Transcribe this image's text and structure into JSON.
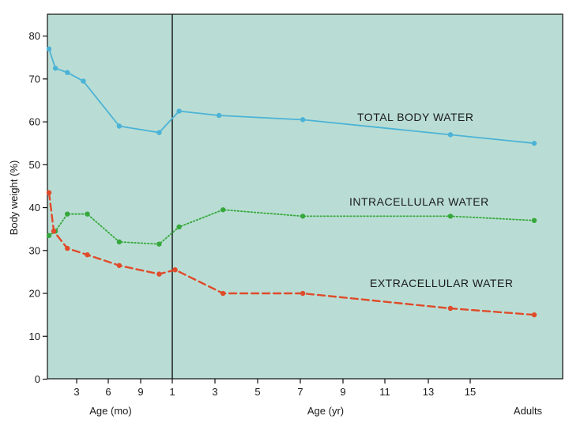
{
  "chart_data": {
    "type": "line",
    "title": "",
    "ylabel": "Body weight (%)",
    "ylim": [
      0,
      85
    ],
    "yticks": [
      0,
      10,
      20,
      30,
      40,
      50,
      60,
      70,
      80
    ],
    "x_sections": [
      {
        "label": "Age (mo)",
        "ticks": [
          "3",
          "6",
          "9",
          "1"
        ]
      },
      {
        "label": "Age (yr)",
        "ticks": [
          "3",
          "5",
          "7",
          "9",
          "11",
          "13",
          "15"
        ]
      },
      {
        "label": "Adults",
        "ticks": []
      }
    ],
    "series": [
      {
        "name": "TOTAL BODY WATER",
        "color": "#4bb3d6",
        "style": "solid",
        "x": [
          0.2,
          1,
          2.5,
          4.5,
          9,
          14,
          16.5,
          21.5,
          32,
          50.5,
          61
        ],
        "values": [
          77,
          72.5,
          71.5,
          69.5,
          59,
          57.5,
          62.5,
          61.5,
          60.5,
          57,
          55
        ]
      },
      {
        "name": "INTRACELLULAR WATER",
        "color": "#37a83c",
        "style": "dotted",
        "x": [
          0.2,
          1,
          2.5,
          5,
          9,
          14,
          16.5,
          22,
          32,
          50.5,
          61
        ],
        "values": [
          33.5,
          34.5,
          38.5,
          38.5,
          32,
          31.5,
          35.5,
          39.5,
          38,
          38,
          37
        ]
      },
      {
        "name": "EXTRACELLULAR WATER",
        "color": "#e04b2a",
        "style": "dashed",
        "x": [
          0.2,
          0.8,
          2.5,
          5,
          9,
          14,
          16,
          22,
          32,
          50.5,
          61
        ],
        "values": [
          43.5,
          34.5,
          30.5,
          29,
          26.5,
          24.5,
          25.5,
          20,
          20,
          16.5,
          15
        ]
      }
    ]
  }
}
